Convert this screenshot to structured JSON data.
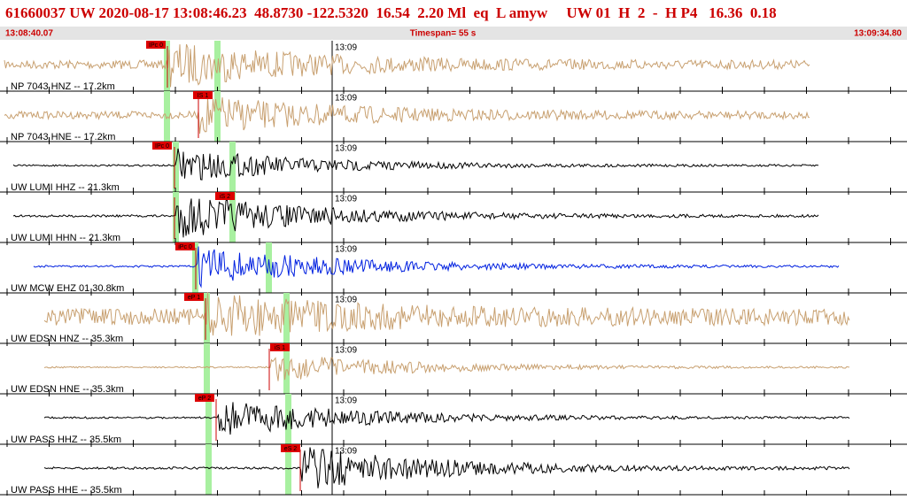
{
  "header": {
    "title": "61660037 UW 2020-08-17 13:08:46.23  48.8730 -122.5320  16.54  2.20 Ml  eq  L amyw     UW 01  H  2  -  H P4   16.36  0.18",
    "start": "13:08:40.07",
    "timespan": "Timespan=  55 s",
    "end": "13:09:34.80"
  },
  "traces": [
    {
      "label": "NP 7043 HNZ -- 17.2km",
      "pick": "IPc 0",
      "time_mark": "13:09",
      "color": "#c8a070"
    },
    {
      "label": "NP 7043 HNE -- 17.2km",
      "pick": "IS 1",
      "time_mark": "13:09",
      "color": "#c8a070"
    },
    {
      "label": "UW LUMI HHZ -- 21.3km",
      "pick": "IPc 0",
      "time_mark": "13:09",
      "color": "#000000"
    },
    {
      "label": "UW LUMI HHN -- 21.3km",
      "pick": "iS 2",
      "time_mark": "13:09",
      "color": "#000000"
    },
    {
      "label": "UW MCW EHZ 01 30.8km",
      "pick": "iPc 0",
      "time_mark": "13:09",
      "color": "#0020e0"
    },
    {
      "label": "UW EDSN HNZ -- 35.3km",
      "pick": "eP 1",
      "time_mark": "13:09",
      "color": "#c8a070"
    },
    {
      "label": "UW EDSN HNE -- 35.3km",
      "pick": "iS 1",
      "time_mark": "13:09",
      "color": "#c8a070"
    },
    {
      "label": "UW PASS HHZ -- 35.5km",
      "pick": "eP 2",
      "time_mark": "13:09",
      "color": "#000000"
    },
    {
      "label": "UW PASS HHE -- 35.5km",
      "pick": "eS 2",
      "time_mark": "13:09",
      "color": "#000000"
    }
  ]
}
